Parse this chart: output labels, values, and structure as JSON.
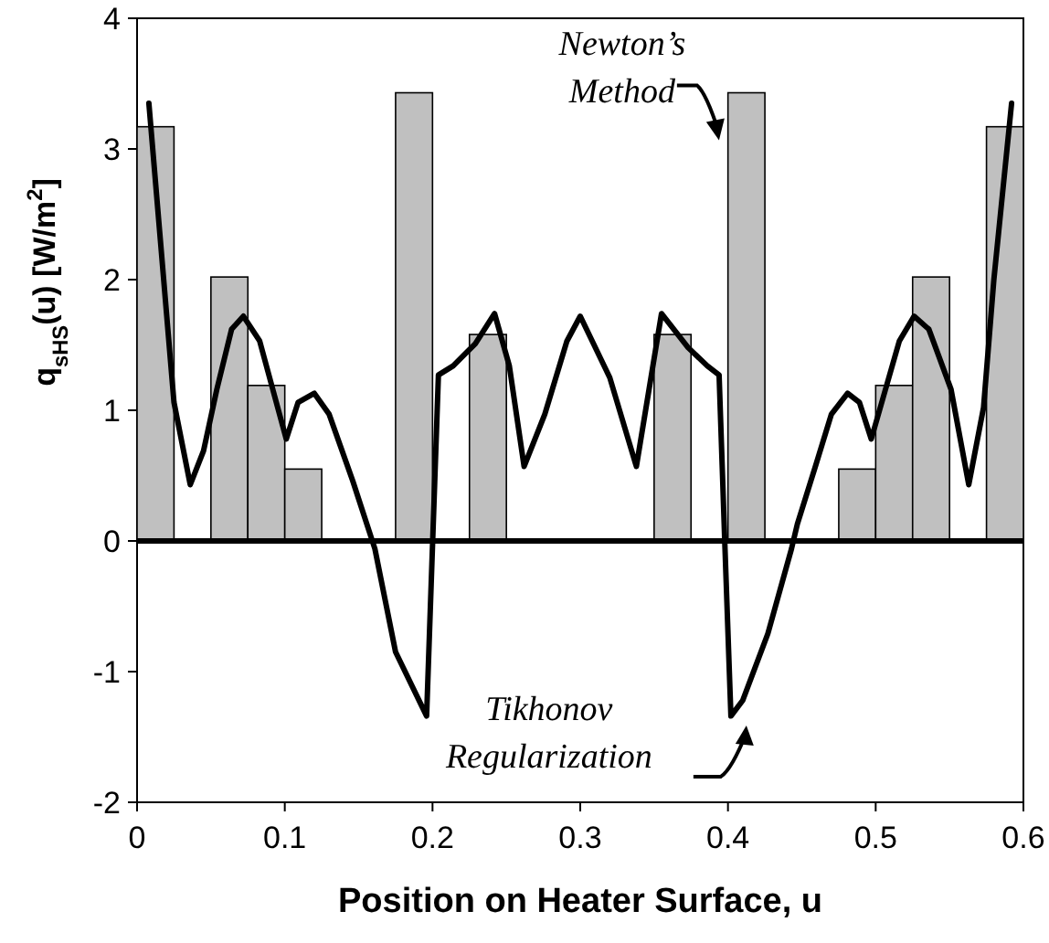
{
  "chart_data": {
    "type": "histogram",
    "xlabel": "Position on Heater Surface, u",
    "ylabel": "q$_{sHS}$(u)  [W/m$^{2}$]",
    "xlim": [
      0,
      0.6
    ],
    "xticks": [
      0,
      0.1,
      0.2,
      0.3,
      0.4,
      0.5,
      0.6
    ],
    "ylim": [
      -2,
      4
    ],
    "yticks": [
      -2,
      -1,
      0,
      1,
      2,
      3,
      4
    ],
    "grid": false,
    "ref_lines": [
      {
        "axis": "y",
        "value": 0,
        "color": "#000000"
      }
    ],
    "annotations": [
      {
        "text": "Newton’s\nMethod",
        "x": 0.4125,
        "y": 3.43
      },
      {
        "text": "Tikhonov\nRegularization",
        "x": 0.41,
        "y": -1.3
      }
    ],
    "series": [
      {
        "type": "histogram",
        "color": "#c0c0c0",
        "bins": [
          0,
          0.025,
          0.05,
          0.075,
          0.1,
          0.125,
          0.15,
          0.175,
          0.2,
          0.225,
          0.25,
          0.275,
          0.3,
          0.325,
          0.35,
          0.375,
          0.4,
          0.425,
          0.45,
          0.475,
          0.5,
          0.525,
          0.55,
          0.575,
          0.6
        ],
        "values": [
          3.17,
          0,
          2.02,
          1.19,
          0.55,
          0,
          0,
          3.43,
          0,
          1.58,
          0,
          0,
          0,
          0,
          1.58,
          0,
          3.43,
          0,
          0,
          0.55,
          1.19,
          2.02,
          0,
          3.17
        ]
      },
      {
        "type": "line",
        "color": "#000000",
        "x": [
          0.008,
          0.025,
          0.036,
          0.045,
          0.054,
          0.064,
          0.072,
          0.083,
          0.101,
          0.109,
          0.12,
          0.13,
          0.146,
          0.161,
          0.175,
          0.196,
          0.204,
          0.214,
          0.229,
          0.242,
          0.252,
          0.262,
          0.276,
          0.291,
          0.3,
          0.32,
          0.338,
          0.355,
          0.373,
          0.386,
          0.394,
          0.398,
          0.402,
          0.41,
          0.427,
          0.443,
          0.447,
          0.46,
          0.47,
          0.481,
          0.489,
          0.497,
          0.516,
          0.526,
          0.536,
          0.551,
          0.563,
          0.573,
          0.58,
          0.592
        ],
        "values": [
          3.35,
          1.06,
          0.43,
          0.69,
          1.16,
          1.62,
          1.72,
          1.53,
          0.78,
          1.06,
          1.13,
          0.97,
          0.46,
          -0.06,
          -0.85,
          -1.34,
          1.27,
          1.34,
          1.51,
          1.74,
          1.34,
          0.57,
          0.97,
          1.53,
          1.72,
          1.25,
          0.57,
          1.74,
          1.48,
          1.34,
          1.27,
          -0.06,
          -1.34,
          -1.22,
          -0.71,
          -0.06,
          0.13,
          0.6,
          0.97,
          1.13,
          1.06,
          0.78,
          1.53,
          1.72,
          1.62,
          1.16,
          0.43,
          1.02,
          2.0,
          3.35
        ]
      }
    ]
  }
}
